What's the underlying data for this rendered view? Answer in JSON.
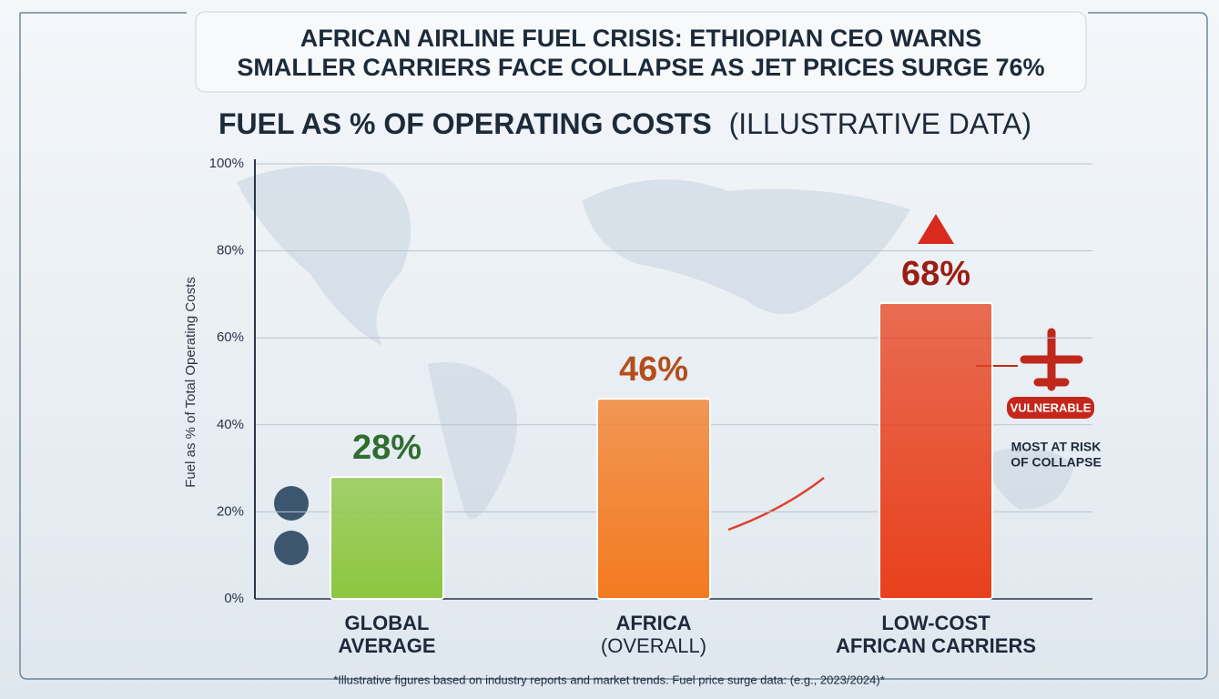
{
  "chart_data": {
    "type": "bar",
    "title_lines": [
      "AFRICAN AIRLINE FUEL CRISIS: ETHIOPIAN CEO WARNS",
      "SMALLER CARRIERS FACE COLLAPSE AS JET PRICES SURGE 76%"
    ],
    "subtitle": "FUEL AS % OF OPERATING COSTS",
    "subtitle_note": "(ILLUSTRATIVE DATA)",
    "y_label": "Fuel as % of Total Operating Costs",
    "categories": [
      [
        "GLOBAL",
        "AVERAGE"
      ],
      [
        "AFRICA",
        "(OVERALL)"
      ],
      [
        "LOW-COST",
        "AFRICAN CARRIERS"
      ]
    ],
    "values": [
      28,
      46,
      68
    ],
    "value_labels": [
      "28%",
      "46%",
      "68%"
    ],
    "colors": [
      "#8cc63f",
      "#f47a20",
      "#e8401c"
    ],
    "label_colors": [
      "#2f6e2f",
      "#b34f1d",
      "#9b1e14"
    ],
    "ylim": [
      0,
      100
    ],
    "yticks": [
      {
        "value": 0,
        "label": "0%"
      },
      {
        "value": 20,
        "label": "20%"
      },
      {
        "value": 40,
        "label": "40%"
      },
      {
        "value": 60,
        "label": "60%"
      },
      {
        "value": 80,
        "label": "80%"
      },
      {
        "value": 100,
        "label": "100%"
      }
    ],
    "grid": true,
    "annotations": {
      "badge": "VULNERABLE",
      "risk_lines": [
        "MOST AT RISK",
        "OF COLLAPSE"
      ]
    },
    "footnote": "*Illustrative figures based on industry reports and market trends. Fuel price surge data: (e.g., 2023/2024)*"
  }
}
